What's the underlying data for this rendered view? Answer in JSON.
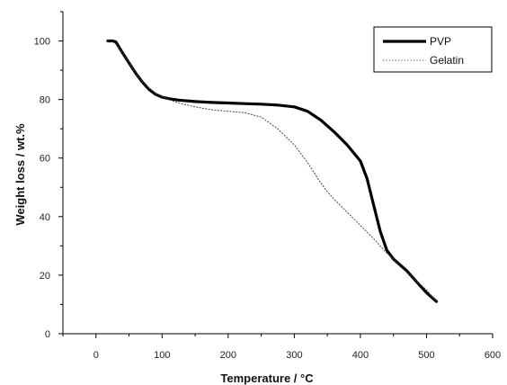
{
  "chart_data": {
    "type": "line",
    "xlabel": "Temperature / °C",
    "ylabel": "Weight loss / wt.%",
    "xlim": [
      -50,
      600
    ],
    "ylim": [
      0,
      110
    ],
    "xticks": [
      0,
      100,
      200,
      300,
      400,
      500,
      600
    ],
    "yticks": [
      0,
      20,
      40,
      60,
      80,
      100
    ],
    "grid": false,
    "legend_position": "top-right",
    "series": [
      {
        "name": "PVP",
        "style": "solid",
        "color": "#000000",
        "x": [
          18,
          25,
          30,
          40,
          50,
          60,
          70,
          80,
          90,
          100,
          110,
          125,
          150,
          175,
          200,
          225,
          250,
          275,
          300,
          320,
          340,
          360,
          380,
          400,
          410,
          420,
          430,
          440,
          450,
          460,
          470,
          480,
          490,
          500,
          515
        ],
        "y": [
          100,
          100,
          99.7,
          96,
          92.5,
          89,
          86,
          83.5,
          81.8,
          80.8,
          80.3,
          79.8,
          79.3,
          79.0,
          78.8,
          78.6,
          78.4,
          78.1,
          77.5,
          76.0,
          73.0,
          69.0,
          64.5,
          59.0,
          53.0,
          44.0,
          35.0,
          28.5,
          25.5,
          23.5,
          21.5,
          19.0,
          16.5,
          14.0,
          11.0
        ]
      },
      {
        "name": "Gelatin",
        "style": "dotted",
        "color": "#444444",
        "x": [
          18,
          25,
          30,
          40,
          50,
          60,
          70,
          80,
          90,
          100,
          110,
          125,
          150,
          175,
          200,
          225,
          250,
          275,
          300,
          320,
          340,
          350,
          360,
          380,
          400,
          420,
          440,
          450,
          460,
          480,
          500,
          515
        ],
        "y": [
          100,
          99.8,
          99,
          96,
          92.5,
          89,
          86,
          84,
          82,
          81,
          80,
          78.8,
          77.5,
          76.5,
          76.0,
          75.5,
          74.0,
          70.0,
          64.5,
          58.5,
          51.5,
          48.5,
          46.0,
          41.5,
          37.0,
          32.5,
          27.5,
          25.5,
          23.0,
          19.0,
          15.0,
          11.0
        ]
      }
    ]
  }
}
